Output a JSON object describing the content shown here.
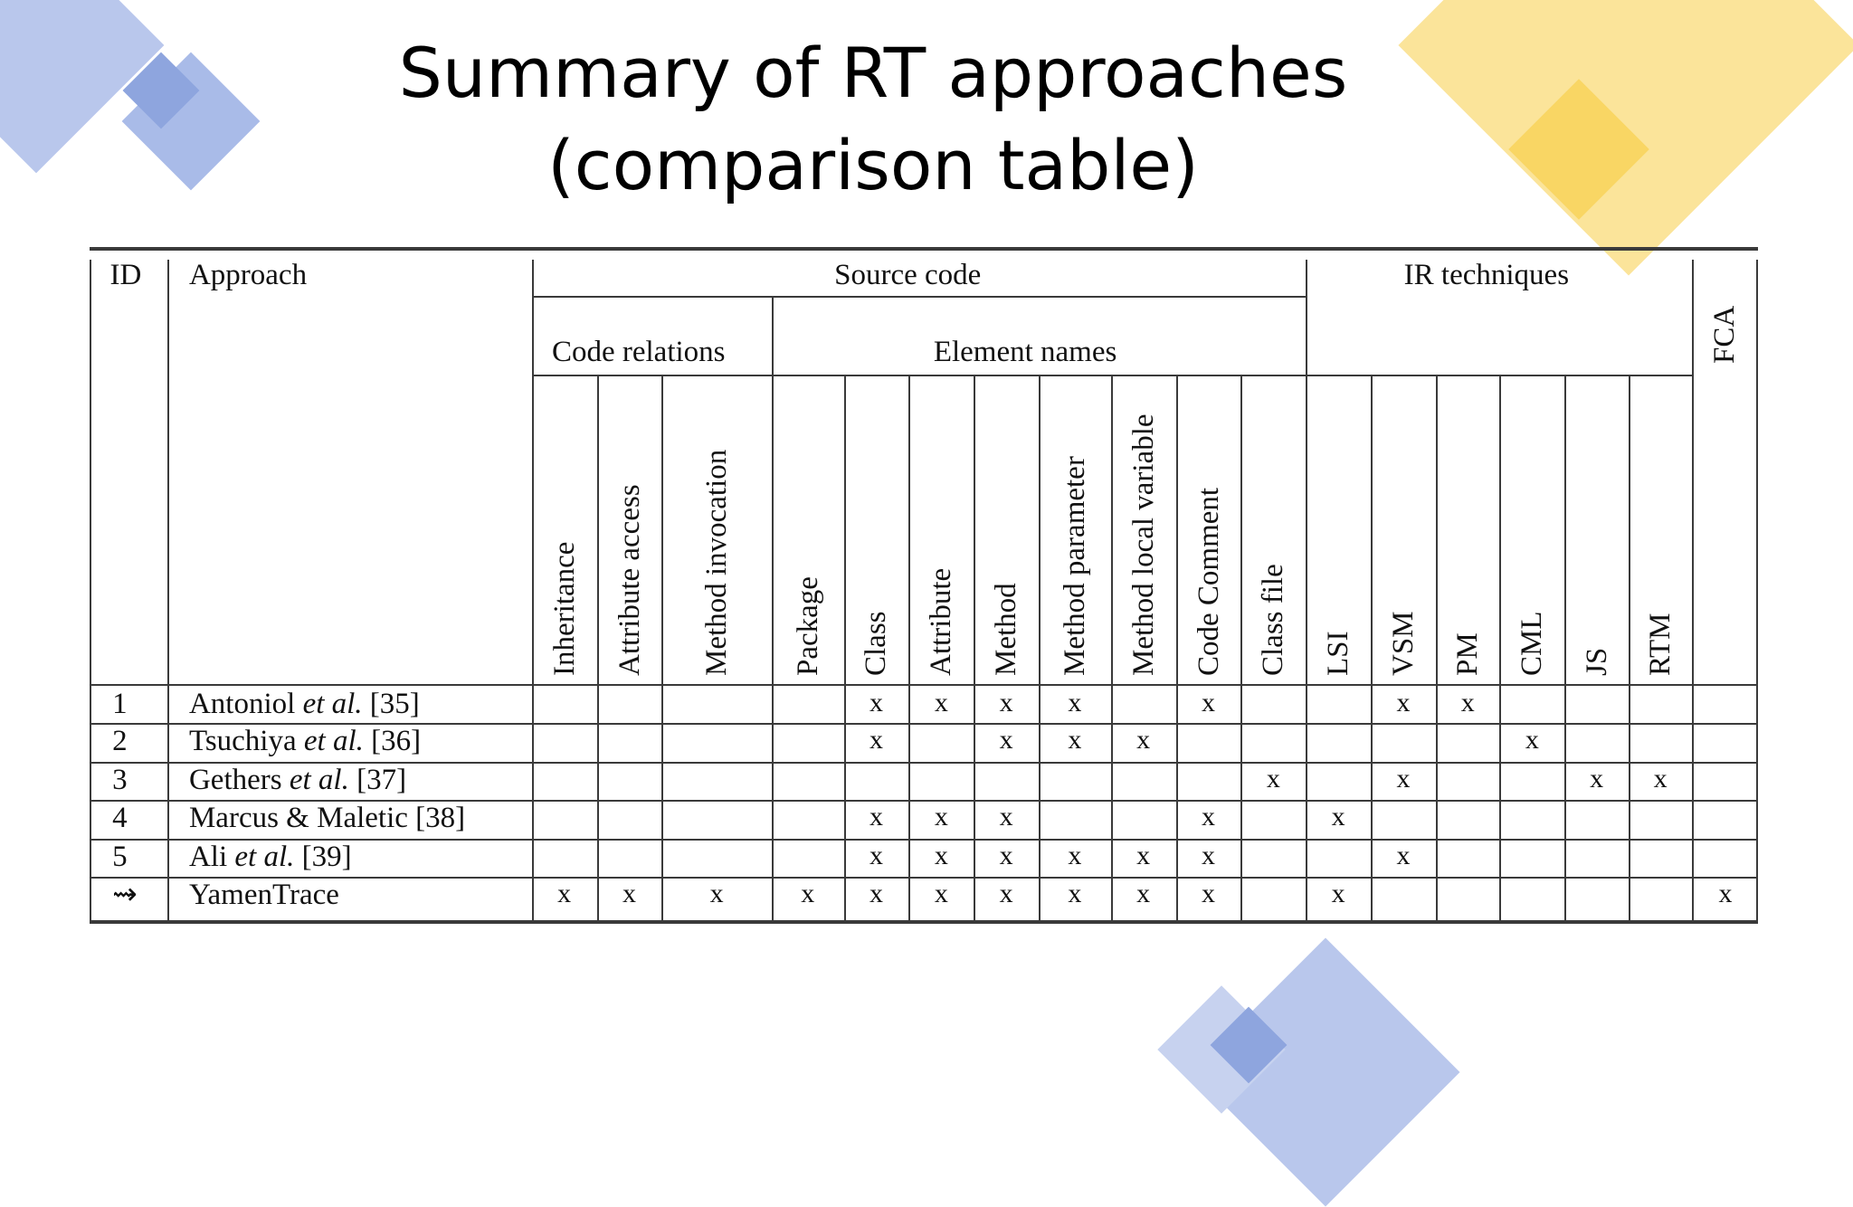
{
  "slide": {
    "title_line1": "Summary of RT approaches",
    "title_line2": "(comparison table)"
  },
  "colors": {
    "deco_blue": "#b9c7ec",
    "deco_blue_dark": "#8ea5de",
    "deco_yellow": "#fbe49a",
    "deco_yellow_dark": "#f9d664",
    "rule": "#3a3a3a"
  },
  "table": {
    "id_header": "ID",
    "approach_header": "Approach",
    "group_source_code": "Source code",
    "group_ir": "IR techniques",
    "group_fca": "FCA",
    "subgroup_code_relations": "Code relations",
    "subgroup_element_names": "Element names",
    "columns": [
      "Inheritance",
      "Attribute access",
      "Method invocation",
      "Package",
      "Class",
      "Attribute",
      "Method",
      "Method parameter",
      "Method local variable",
      "Code Comment",
      "Class file",
      "LSI",
      "VSM",
      "PM",
      "CML",
      "JS",
      "RTM"
    ],
    "rows": [
      {
        "id": "1",
        "author": "Antoniol",
        "etal": "et al.",
        "ref": "[35]",
        "marks": [
          "",
          "",
          "",
          "",
          "x",
          "x",
          "x",
          "x",
          "",
          "x",
          "",
          "",
          "x",
          "x",
          "",
          "",
          "",
          ""
        ]
      },
      {
        "id": "2",
        "author": "Tsuchiya",
        "etal": "et al.",
        "ref": "[36]",
        "marks": [
          "",
          "",
          "",
          "",
          "x",
          "",
          "x",
          "x",
          "x",
          "",
          "",
          "",
          "",
          "",
          "x",
          "",
          "",
          ""
        ]
      },
      {
        "id": "3",
        "author": "Gethers",
        "etal": "et al.",
        "ref": "[37]",
        "marks": [
          "",
          "",
          "",
          "",
          "",
          "",
          "",
          "",
          "",
          "",
          "x",
          "",
          "x",
          "",
          "",
          "x",
          "x",
          ""
        ]
      },
      {
        "id": "4",
        "author": "Marcus & Maletic",
        "etal": "",
        "ref": "[38]",
        "marks": [
          "",
          "",
          "",
          "",
          "x",
          "x",
          "x",
          "",
          "",
          "x",
          "",
          "x",
          "",
          "",
          "",
          "",
          "",
          ""
        ]
      },
      {
        "id": "5",
        "author": "Ali",
        "etal": "et al.",
        "ref": "[39]",
        "marks": [
          "",
          "",
          "",
          "",
          "x",
          "x",
          "x",
          "x",
          "x",
          "x",
          "",
          "",
          "x",
          "",
          "",
          "",
          "",
          ""
        ]
      },
      {
        "id": "⇝",
        "author": "YamenTrace",
        "etal": "",
        "ref": "",
        "marks": [
          "x",
          "x",
          "x",
          "x",
          "x",
          "x",
          "x",
          "x",
          "x",
          "x",
          "",
          "x",
          "",
          "",
          "",
          "",
          "",
          "x"
        ]
      }
    ]
  }
}
